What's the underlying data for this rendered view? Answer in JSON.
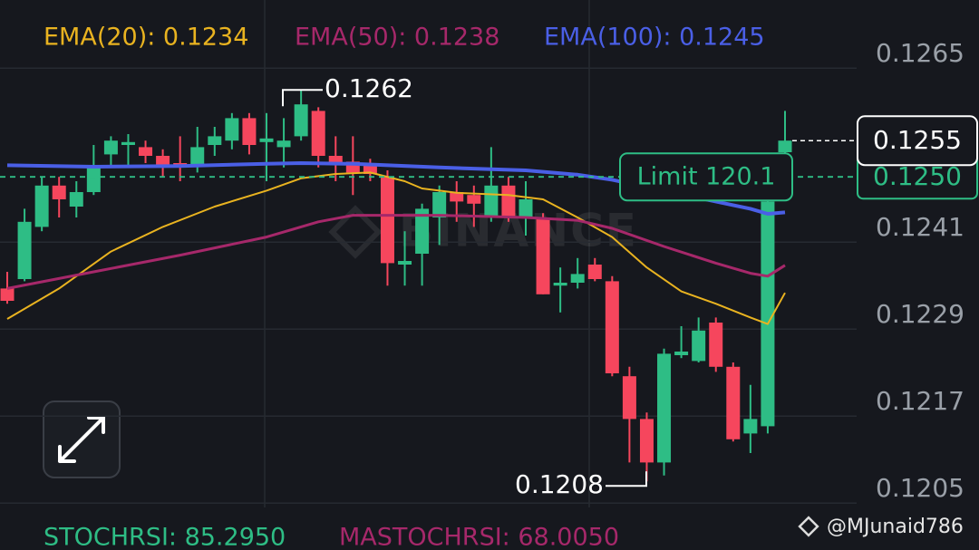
{
  "chart_data": {
    "type": "candlestick",
    "up_color": "#2ebd85",
    "down_color": "#f6465d",
    "open": [
      0.12346,
      0.12359,
      0.12431,
      0.12488,
      0.12459,
      0.12479,
      0.12531,
      0.12544,
      0.12541,
      0.12529,
      0.12519,
      0.12516,
      0.12544,
      0.1255,
      0.12581,
      0.12548,
      0.12541,
      0.12556,
      0.12591,
      0.12529,
      0.12521,
      0.12519,
      0.125,
      0.12379,
      0.12394,
      0.12444,
      0.12479,
      0.12475,
      0.12444,
      0.12488,
      0.12444,
      0.12444,
      0.1235,
      0.12354,
      0.12379,
      0.12356,
      0.12225,
      0.12166,
      0.12106,
      0.12254,
      0.12246,
      0.12299,
      0.12238,
      0.12146,
      0.12156,
      0.12534
    ],
    "high": [
      0.12369,
      0.12456,
      0.125,
      0.125,
      0.12494,
      0.12544,
      0.12556,
      0.12559,
      0.1255,
      0.12538,
      0.12556,
      0.12569,
      0.12569,
      0.12588,
      0.12588,
      0.12588,
      0.12581,
      0.1262,
      0.12596,
      0.12556,
      0.12556,
      0.12525,
      0.12509,
      0.12425,
      0.12463,
      0.12488,
      0.12494,
      0.12488,
      0.12541,
      0.125,
      0.12494,
      0.1245,
      0.12375,
      0.12388,
      0.12388,
      0.12363,
      0.12238,
      0.12175,
      0.12263,
      0.12294,
      0.12306,
      0.12306,
      0.12244,
      0.12213,
      0.12481,
      0.12591
    ],
    "low": [
      0.12325,
      0.12356,
      0.12425,
      0.12444,
      0.12444,
      0.12475,
      0.12513,
      0.12513,
      0.12519,
      0.125,
      0.12494,
      0.12506,
      0.12529,
      0.12538,
      0.12531,
      0.12494,
      0.12513,
      0.1255,
      0.12513,
      0.12494,
      0.12475,
      0.12494,
      0.1235,
      0.1235,
      0.1235,
      0.12406,
      0.12438,
      0.12431,
      0.12438,
      0.12438,
      0.12419,
      0.12338,
      0.12313,
      0.12346,
      0.12356,
      0.12225,
      0.12106,
      0.1208,
      0.12088,
      0.1225,
      0.12244,
      0.12231,
      0.12135,
      0.12119,
      0.12146,
      0.12531
    ],
    "close": [
      0.12329,
      0.12438,
      0.12488,
      0.12469,
      0.12479,
      0.12513,
      0.1255,
      0.12548,
      0.12529,
      0.12516,
      0.12513,
      0.12541,
      0.12556,
      0.12581,
      0.12544,
      0.12553,
      0.1255,
      0.126,
      0.12529,
      0.12519,
      0.12506,
      0.12504,
      0.12381,
      0.12384,
      0.12456,
      0.12479,
      0.12466,
      0.12463,
      0.12488,
      0.12444,
      0.12469,
      0.12338,
      0.12354,
      0.12366,
      0.12359,
      0.12229,
      0.12166,
      0.12106,
      0.12256,
      0.12259,
      0.12288,
      0.12238,
      0.12138,
      0.12166,
      0.12466,
      0.1255
    ],
    "series": [
      {
        "name": "EMA(20): 0.1234",
        "color": "#e9b320",
        "width": 2,
        "x": [
          0,
          3,
          6,
          9,
          12,
          15,
          17,
          19,
          21,
          23,
          24,
          26,
          29,
          31,
          33,
          35,
          37,
          39,
          41,
          43,
          44,
          45
        ],
        "values": [
          0.12304,
          0.12346,
          0.12397,
          0.12431,
          0.12459,
          0.12481,
          0.12498,
          0.12504,
          0.12506,
          0.12494,
          0.12484,
          0.12478,
          0.12475,
          0.12469,
          0.12444,
          0.12417,
          0.12375,
          0.12342,
          0.12325,
          0.12306,
          0.12297,
          0.1234
        ]
      },
      {
        "name": "EMA(50): 0.1238",
        "color": "#a6286a",
        "width": 3,
        "x": [
          0,
          5,
          10,
          15,
          18,
          20,
          25,
          30,
          33,
          35,
          38,
          41,
          43,
          44,
          45
        ],
        "values": [
          0.12346,
          0.12369,
          0.12392,
          0.12417,
          0.12438,
          0.12447,
          0.12447,
          0.12444,
          0.1244,
          0.12429,
          0.12404,
          0.12381,
          0.12367,
          0.12363,
          0.12378
        ]
      },
      {
        "name": "EMA(100): 0.1245",
        "color": "#4a5fe6",
        "width": 4,
        "x": [
          0,
          5,
          10,
          15,
          17,
          20,
          25,
          30,
          33,
          35,
          38,
          41,
          43,
          44,
          45
        ],
        "values": [
          0.12516,
          0.12514,
          0.12515,
          0.12518,
          0.12519,
          0.12518,
          0.12513,
          0.12509,
          0.12503,
          0.12496,
          0.12481,
          0.12466,
          0.12456,
          0.12449,
          0.12451
        ]
      }
    ],
    "ylim": [
      0.12044,
      0.12744
    ],
    "yticks": [
      0.1265,
      0.1241,
      0.1229,
      0.1217,
      0.1205
    ],
    "grid": true,
    "current_price": 0.1255,
    "limit_order": {
      "label": "Limit 120.1",
      "price": {
        "value": 0.125,
        "label": "0.1250"
      }
    },
    "high_annotation": 0.1262,
    "low_annotation": 0.1208,
    "indicators": [
      {
        "text": "STOCHRSI: 85.2950",
        "color": "#2ebd85"
      },
      {
        "text": "MASTOCHRSI: 68.0050",
        "color": "#a6286a"
      }
    ],
    "watermark": "BINANCE",
    "credit": "@MJunaid786"
  }
}
